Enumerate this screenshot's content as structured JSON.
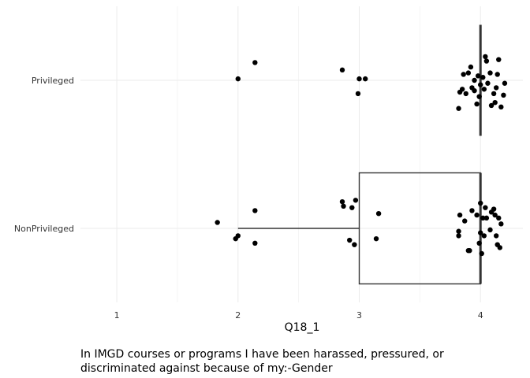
{
  "chart_data": {
    "type": "boxplot",
    "orientation": "horizontal",
    "xlabel": "Q18_1",
    "ylabel": "",
    "caption": "In IMGD courses or programs I have been harassed, pressured, or discriminated against because of my:-Gender",
    "xlim": [
      0.7,
      4.35
    ],
    "x_ticks": [
      1,
      2,
      3,
      4
    ],
    "categories": [
      "NonPrivileged",
      "Privileged"
    ],
    "grid": true,
    "legend": "none",
    "colors": {
      "points": "#000000",
      "box": "#333333",
      "grid": "#ebebeb",
      "text": "#333333"
    },
    "boxes": [
      {
        "name": "NonPrivileged",
        "min": 2,
        "q1": 3,
        "median": 4,
        "q3": 4,
        "max": 4
      },
      {
        "name": "Privileged",
        "min": 4,
        "q1": 4,
        "median": 4,
        "q3": 4,
        "max": 4
      }
    ],
    "points": [
      {
        "category": "Privileged",
        "x": 2.14,
        "jitter": 0.12
      },
      {
        "category": "Privileged",
        "x": 2.0,
        "jitter": 0.01
      },
      {
        "category": "Privileged",
        "x": 2.86,
        "jitter": 0.07
      },
      {
        "category": "Privileged",
        "x": 3.0,
        "jitter": 0.01
      },
      {
        "category": "Privileged",
        "x": 3.05,
        "jitter": 0.01
      },
      {
        "category": "Privileged",
        "x": 2.99,
        "jitter": -0.09
      },
      {
        "category": "Privileged",
        "x": 3.82,
        "jitter": -0.19
      },
      {
        "category": "Privileged",
        "x": 3.83,
        "jitter": -0.08
      },
      {
        "category": "Privileged",
        "x": 3.85,
        "jitter": -0.06
      },
      {
        "category": "Privileged",
        "x": 3.86,
        "jitter": 0.04
      },
      {
        "category": "Privileged",
        "x": 3.88,
        "jitter": -0.09
      },
      {
        "category": "Privileged",
        "x": 3.9,
        "jitter": 0.05
      },
      {
        "category": "Privileged",
        "x": 3.92,
        "jitter": 0.09
      },
      {
        "category": "Privileged",
        "x": 3.93,
        "jitter": -0.05
      },
      {
        "category": "Privileged",
        "x": 3.95,
        "jitter": 0.0
      },
      {
        "category": "Privileged",
        "x": 3.95,
        "jitter": -0.07
      },
      {
        "category": "Privileged",
        "x": 3.97,
        "jitter": -0.16
      },
      {
        "category": "Privileged",
        "x": 3.98,
        "jitter": 0.03
      },
      {
        "category": "Privileged",
        "x": 3.99,
        "jitter": -0.11
      },
      {
        "category": "Privileged",
        "x": 4.0,
        "jitter": -0.03
      },
      {
        "category": "Privileged",
        "x": 4.02,
        "jitter": 0.02
      },
      {
        "category": "Privileged",
        "x": 4.03,
        "jitter": -0.06
      },
      {
        "category": "Privileged",
        "x": 4.04,
        "jitter": 0.16
      },
      {
        "category": "Privileged",
        "x": 4.05,
        "jitter": 0.13
      },
      {
        "category": "Privileged",
        "x": 4.06,
        "jitter": -0.02
      },
      {
        "category": "Privileged",
        "x": 4.08,
        "jitter": 0.05
      },
      {
        "category": "Privileged",
        "x": 4.09,
        "jitter": -0.17
      },
      {
        "category": "Privileged",
        "x": 4.11,
        "jitter": -0.09
      },
      {
        "category": "Privileged",
        "x": 4.12,
        "jitter": -0.15
      },
      {
        "category": "Privileged",
        "x": 4.13,
        "jitter": -0.05
      },
      {
        "category": "Privileged",
        "x": 4.14,
        "jitter": 0.04
      },
      {
        "category": "Privileged",
        "x": 4.15,
        "jitter": 0.14
      },
      {
        "category": "Privileged",
        "x": 4.17,
        "jitter": -0.18
      },
      {
        "category": "Privileged",
        "x": 4.19,
        "jitter": -0.1
      },
      {
        "category": "Privileged",
        "x": 4.2,
        "jitter": -0.02
      },
      {
        "category": "NonPrivileged",
        "x": 1.83,
        "jitter": 0.04
      },
      {
        "category": "NonPrivileged",
        "x": 1.98,
        "jitter": -0.07
      },
      {
        "category": "NonPrivileged",
        "x": 2.0,
        "jitter": -0.05
      },
      {
        "category": "NonPrivileged",
        "x": 2.14,
        "jitter": 0.12
      },
      {
        "category": "NonPrivileged",
        "x": 2.14,
        "jitter": -0.1
      },
      {
        "category": "NonPrivileged",
        "x": 2.86,
        "jitter": 0.18
      },
      {
        "category": "NonPrivileged",
        "x": 2.87,
        "jitter": 0.15
      },
      {
        "category": "NonPrivileged",
        "x": 2.92,
        "jitter": -0.08
      },
      {
        "category": "NonPrivileged",
        "x": 2.94,
        "jitter": 0.14
      },
      {
        "category": "NonPrivileged",
        "x": 2.96,
        "jitter": -0.11
      },
      {
        "category": "NonPrivileged",
        "x": 2.97,
        "jitter": 0.19
      },
      {
        "category": "NonPrivileged",
        "x": 3.14,
        "jitter": -0.07
      },
      {
        "category": "NonPrivileged",
        "x": 3.16,
        "jitter": 0.1
      },
      {
        "category": "NonPrivileged",
        "x": 3.82,
        "jitter": -0.05
      },
      {
        "category": "NonPrivileged",
        "x": 3.82,
        "jitter": -0.02
      },
      {
        "category": "NonPrivileged",
        "x": 3.83,
        "jitter": 0.09
      },
      {
        "category": "NonPrivileged",
        "x": 3.87,
        "jitter": 0.05
      },
      {
        "category": "NonPrivileged",
        "x": 3.9,
        "jitter": -0.15
      },
      {
        "category": "NonPrivileged",
        "x": 3.91,
        "jitter": -0.15
      },
      {
        "category": "NonPrivileged",
        "x": 3.93,
        "jitter": 0.12
      },
      {
        "category": "NonPrivileged",
        "x": 3.97,
        "jitter": 0.09
      },
      {
        "category": "NonPrivileged",
        "x": 3.99,
        "jitter": -0.1
      },
      {
        "category": "NonPrivileged",
        "x": 4.0,
        "jitter": 0.17
      },
      {
        "category": "NonPrivileged",
        "x": 4.0,
        "jitter": -0.03
      },
      {
        "category": "NonPrivileged",
        "x": 4.01,
        "jitter": -0.17
      },
      {
        "category": "NonPrivileged",
        "x": 4.02,
        "jitter": 0.07
      },
      {
        "category": "NonPrivileged",
        "x": 4.03,
        "jitter": -0.05
      },
      {
        "category": "NonPrivileged",
        "x": 4.04,
        "jitter": 0.14
      },
      {
        "category": "NonPrivileged",
        "x": 4.05,
        "jitter": 0.07
      },
      {
        "category": "NonPrivileged",
        "x": 4.08,
        "jitter": -0.01
      },
      {
        "category": "NonPrivileged",
        "x": 4.09,
        "jitter": 0.11
      },
      {
        "category": "NonPrivileged",
        "x": 4.11,
        "jitter": 0.13
      },
      {
        "category": "NonPrivileged",
        "x": 4.12,
        "jitter": 0.09
      },
      {
        "category": "NonPrivileged",
        "x": 4.13,
        "jitter": -0.05
      },
      {
        "category": "NonPrivileged",
        "x": 4.14,
        "jitter": -0.11
      },
      {
        "category": "NonPrivileged",
        "x": 4.15,
        "jitter": 0.07
      },
      {
        "category": "NonPrivileged",
        "x": 4.16,
        "jitter": -0.13
      },
      {
        "category": "NonPrivileged",
        "x": 4.17,
        "jitter": 0.03
      }
    ]
  }
}
